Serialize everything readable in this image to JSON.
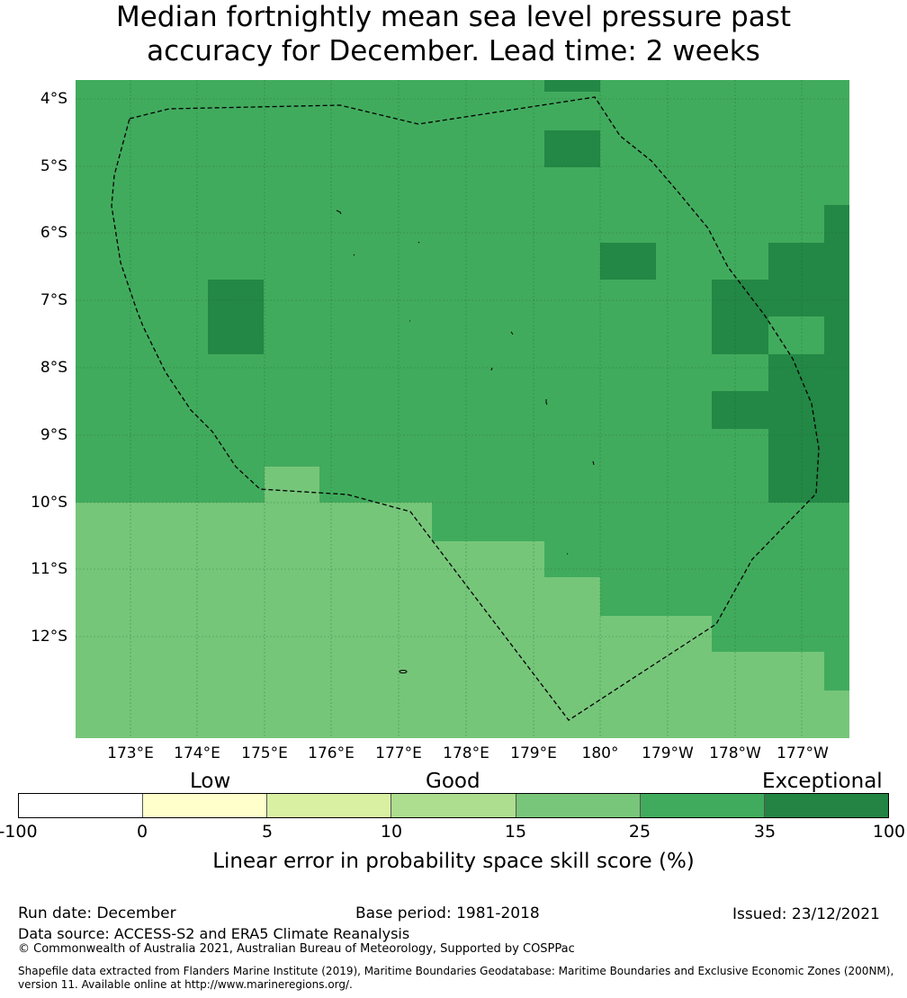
{
  "title": {
    "line1": "Median fortnightly mean sea level pressure past",
    "line2": "accuracy for December. Lead time: 2 weeks"
  },
  "map": {
    "lat_labels": [
      "4°S",
      "5°S",
      "6°S",
      "7°S",
      "8°S",
      "9°S",
      "10°S",
      "11°S",
      "12°S"
    ],
    "lon_labels": [
      "173°E",
      "174°E",
      "175°E",
      "176°E",
      "177°E",
      "178°E",
      "179°E",
      "180°",
      "179°W",
      "178°W",
      "177°W"
    ],
    "colors": {
      "cat_15_25": "#76c67a",
      "cat_25_35": "#41ab5d",
      "cat_35_100": "#238745",
      "gridline": "#1a5e2e",
      "boundary": "#000000"
    }
  },
  "legend": {
    "categories": [
      "Low",
      "Good",
      "Exceptional"
    ],
    "ticks": [
      "-100",
      "0",
      "5",
      "10",
      "15",
      "25",
      "35",
      "100"
    ],
    "colors": [
      "#ffffff",
      "#ffffcc",
      "#d9f0a3",
      "#addd8e",
      "#78c679",
      "#41ab5d",
      "#238443"
    ],
    "title": "Linear error in probability space skill score (%)"
  },
  "footer": {
    "run_date": "Run date: December",
    "base_period": "Base period: 1981-2018",
    "issued": "Issued: 23/12/2021",
    "data_source": "Data source: ACCESS-S2 and ERA5 Climate Reanalysis",
    "copyright": "© Commonwealth of Australia 2021, Australian Bureau of Meteorology, Supported by COSPPac",
    "shapefile_line1": "Shapefile data extracted from Flanders Marine Institute (2019), Maritime Boundaries Geodatabase: Maritime Boundaries and Exclusive Economic Zones (200NM),",
    "shapefile_line2": "version 11. Available online at http://www.marineregions.org/."
  }
}
